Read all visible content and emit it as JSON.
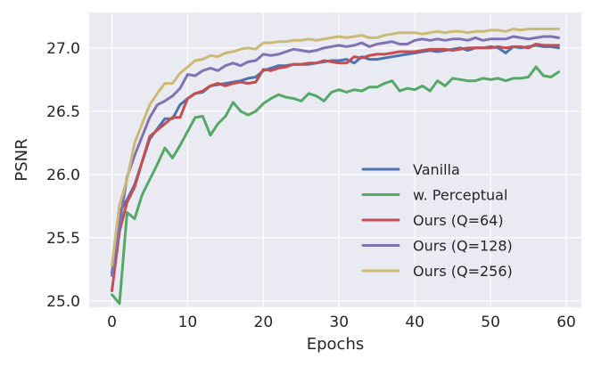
{
  "chart_data": {
    "type": "line",
    "title": "",
    "xlabel": "Epochs",
    "ylabel": "PSNR",
    "xlim": [
      -3,
      62
    ],
    "ylim": [
      24.95,
      27.28
    ],
    "xticks": [
      0,
      10,
      20,
      30,
      40,
      50,
      60
    ],
    "yticks": [
      25.0,
      25.5,
      26.0,
      26.5,
      27.0
    ],
    "ytick_labels": [
      "25.0",
      "25.5",
      "26.0",
      "26.5",
      "27.0"
    ],
    "grid": true,
    "background": "#eaeaf2",
    "legend_position": "lower-right",
    "x": [
      0,
      1,
      2,
      3,
      4,
      5,
      6,
      7,
      8,
      9,
      10,
      11,
      12,
      13,
      14,
      15,
      16,
      17,
      18,
      19,
      20,
      21,
      22,
      23,
      24,
      25,
      26,
      27,
      28,
      29,
      30,
      31,
      32,
      33,
      34,
      35,
      36,
      37,
      38,
      39,
      40,
      41,
      42,
      43,
      44,
      45,
      46,
      47,
      48,
      49,
      50,
      51,
      52,
      53,
      54,
      55,
      56,
      57,
      58,
      59
    ],
    "series": [
      {
        "name": "Vanilla",
        "color": "#4c72b0",
        "values": [
          25.22,
          25.7,
          25.8,
          25.92,
          26.1,
          26.28,
          26.36,
          26.44,
          26.44,
          26.55,
          26.6,
          26.64,
          26.65,
          26.7,
          26.71,
          26.72,
          26.73,
          26.74,
          26.76,
          26.77,
          26.82,
          26.84,
          26.86,
          26.86,
          26.87,
          26.87,
          26.87,
          26.88,
          26.89,
          26.9,
          26.9,
          26.91,
          26.88,
          26.93,
          26.91,
          26.91,
          26.92,
          26.93,
          26.94,
          26.95,
          26.96,
          26.97,
          26.98,
          26.97,
          26.98,
          26.99,
          27.0,
          26.98,
          27.0,
          27.0,
          27.01,
          27.0,
          26.96,
          27.01,
          27.0,
          27.01,
          27.02,
          27.01,
          27.01,
          27.0
        ]
      },
      {
        "name": "w. Perceptual",
        "color": "#55a868",
        "values": [
          25.05,
          24.98,
          25.7,
          25.65,
          25.84,
          25.96,
          26.08,
          26.21,
          26.13,
          26.23,
          26.34,
          26.45,
          26.46,
          26.31,
          26.4,
          26.46,
          26.57,
          26.5,
          26.47,
          26.5,
          26.56,
          26.6,
          26.63,
          26.61,
          26.6,
          26.58,
          26.64,
          26.62,
          26.58,
          26.65,
          26.67,
          26.65,
          26.67,
          26.66,
          26.69,
          26.69,
          26.72,
          26.74,
          26.66,
          26.68,
          26.67,
          26.7,
          26.66,
          26.74,
          26.7,
          26.76,
          26.75,
          26.74,
          26.74,
          26.76,
          26.75,
          26.76,
          26.74,
          26.76,
          26.76,
          26.77,
          26.85,
          26.78,
          26.77,
          26.81
        ]
      },
      {
        "name": "Ours (Q=64)",
        "color": "#c44e52",
        "values": [
          25.08,
          25.55,
          25.78,
          25.9,
          26.1,
          26.3,
          26.35,
          26.4,
          26.45,
          26.45,
          26.6,
          26.64,
          26.66,
          26.7,
          26.72,
          26.7,
          26.72,
          26.73,
          26.72,
          26.73,
          26.83,
          26.82,
          26.84,
          26.85,
          26.87,
          26.87,
          26.88,
          26.88,
          26.9,
          26.89,
          26.88,
          26.88,
          26.93,
          26.92,
          26.94,
          26.95,
          26.95,
          26.96,
          26.97,
          26.97,
          26.97,
          26.98,
          26.99,
          26.99,
          26.99,
          26.98,
          26.99,
          27.0,
          27.0,
          27.0,
          27.0,
          27.01,
          27.0,
          27.01,
          27.01,
          27.0,
          27.03,
          27.02,
          27.02,
          27.02
        ]
      },
      {
        "name": "Ours (Q=128)",
        "color": "#8172b2",
        "values": [
          25.2,
          25.6,
          25.98,
          26.15,
          26.3,
          26.45,
          26.55,
          26.58,
          26.62,
          26.68,
          26.79,
          26.78,
          26.82,
          26.84,
          26.82,
          26.86,
          26.88,
          26.86,
          26.89,
          26.9,
          26.95,
          26.94,
          26.95,
          26.97,
          26.99,
          26.98,
          26.97,
          26.98,
          27.0,
          27.01,
          27.02,
          27.01,
          27.02,
          27.04,
          27.01,
          27.03,
          27.04,
          27.05,
          27.03,
          27.03,
          27.06,
          27.07,
          27.06,
          27.07,
          27.06,
          27.07,
          27.07,
          27.06,
          27.08,
          27.06,
          27.07,
          27.07,
          27.07,
          27.09,
          27.08,
          27.07,
          27.08,
          27.09,
          27.09,
          27.08
        ]
      },
      {
        "name": "Ours (Q=256)",
        "color": "#ccb974",
        "values": [
          25.28,
          25.76,
          25.96,
          26.25,
          26.4,
          26.55,
          26.64,
          26.72,
          26.72,
          26.8,
          26.85,
          26.9,
          26.91,
          26.94,
          26.93,
          26.96,
          26.97,
          26.99,
          27.0,
          26.99,
          27.04,
          27.04,
          27.05,
          27.05,
          27.06,
          27.06,
          27.07,
          27.06,
          27.07,
          27.08,
          27.09,
          27.08,
          27.09,
          27.1,
          27.08,
          27.08,
          27.1,
          27.11,
          27.12,
          27.12,
          27.12,
          27.11,
          27.12,
          27.13,
          27.12,
          27.13,
          27.13,
          27.12,
          27.13,
          27.13,
          27.14,
          27.14,
          27.13,
          27.15,
          27.14,
          27.15,
          27.15,
          27.15,
          27.15,
          27.15
        ]
      }
    ]
  }
}
